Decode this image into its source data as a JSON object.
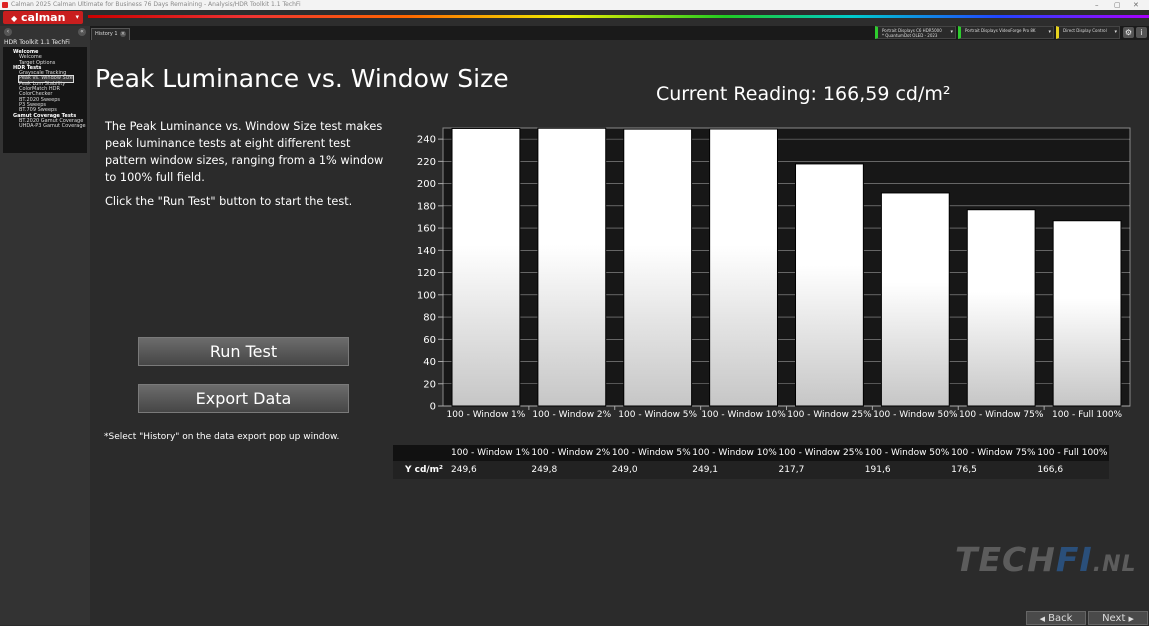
{
  "window": {
    "title": "Calman 2025 Calman Ultimate for Business 76 Days Remaining - Analysis/HDR Toolkit 1.1 TechFi",
    "minimize": "–",
    "maximize": "▢",
    "close": "✕"
  },
  "app": {
    "logo_text": "calman",
    "logo_caret": "▾",
    "brand_color": "#c81e1e"
  },
  "sidebar": {
    "title": "HDR Toolkit 1.1 TechFi",
    "tree": [
      {
        "label": "Welcome",
        "level": 1
      },
      {
        "label": "Welcome",
        "level": 2
      },
      {
        "label": "Target Options",
        "level": 2
      },
      {
        "label": "HDR Tests",
        "level": 1
      },
      {
        "label": "Grayscale Tracking",
        "level": 2
      },
      {
        "label": "Peak vs. Window Size",
        "level": 2,
        "selected": true
      },
      {
        "label": "Peak Lum Stability",
        "level": 2
      },
      {
        "label": "ColorMatch HDR",
        "level": 2
      },
      {
        "label": "ColorChecker",
        "level": 2
      },
      {
        "label": "BT.2020 Sweeps",
        "level": 2
      },
      {
        "label": "P3 Sweeps",
        "level": 2
      },
      {
        "label": "BT.709 Sweeps",
        "level": 2
      },
      {
        "label": "Gamut Coverage Tests",
        "level": 1
      },
      {
        "label": "BT.2020 Gamut Coverage",
        "level": 2
      },
      {
        "label": "UHDA-P3 Gamut Coverage",
        "level": 2
      }
    ]
  },
  "tabs": [
    {
      "label": "History 1"
    }
  ],
  "devices": [
    {
      "line1": "Portrait Displays C6 HDR5000",
      "line2": "* QuantumDot OLED - 2023",
      "color": "#2ecc2e"
    },
    {
      "line1": "Portrait Displays VideoForge Pro 8K",
      "line2": "",
      "color": "#2ecc2e"
    },
    {
      "line1": "Direct Display Control",
      "line2": "",
      "color": "#e6d21e"
    }
  ],
  "main": {
    "title": "Peak Luminance vs. Window Size",
    "current_reading": "Current Reading: 166,59 cd/m²",
    "description": [
      "The Peak Luminance vs. Window Size test makes peak luminance tests at eight different test pattern window sizes, ranging from a 1% window to 100% full field.",
      "Click the \"Run Test\" button to start the test."
    ],
    "run_test_label": "Run Test",
    "export_label": "Export  Data",
    "note": "*Select \"History\" on the data export pop up window."
  },
  "chart_data": {
    "type": "bar",
    "categories": [
      "100 - Window  1%",
      "100 - Window  2%",
      "100 - Window  5%",
      "100 - Window 10%",
      "100 - Window 25%",
      "100 - Window 50%",
      "100 - Window 75%",
      "100 - Full  100%"
    ],
    "values": [
      249.6,
      249.8,
      249.0,
      249.1,
      217.7,
      191.6,
      176.5,
      166.6
    ],
    "ylim": [
      0,
      250
    ],
    "yticks": [
      0,
      20,
      40,
      60,
      80,
      100,
      120,
      140,
      160,
      180,
      200,
      220,
      240
    ],
    "grid": true
  },
  "table": {
    "row_label": "Y cd/m²",
    "headers": [
      "100 - Window  1%",
      "100 - Window  2%",
      "100 - Window  5%",
      "100 - Window 10%",
      "100 - Window 25%",
      "100 - Window 50%",
      "100 - Window 75%",
      "100 - Full  100%"
    ],
    "values": [
      "249,6",
      "249,8",
      "249,0",
      "249,1",
      "217,7",
      "191,6",
      "176,5",
      "166,6"
    ]
  },
  "watermark": {
    "part1": "TECH",
    "part2": "FI",
    "part3": ".NL",
    "accent": "#2a4f7a"
  },
  "footer": {
    "back": "Back",
    "next": "Next"
  }
}
